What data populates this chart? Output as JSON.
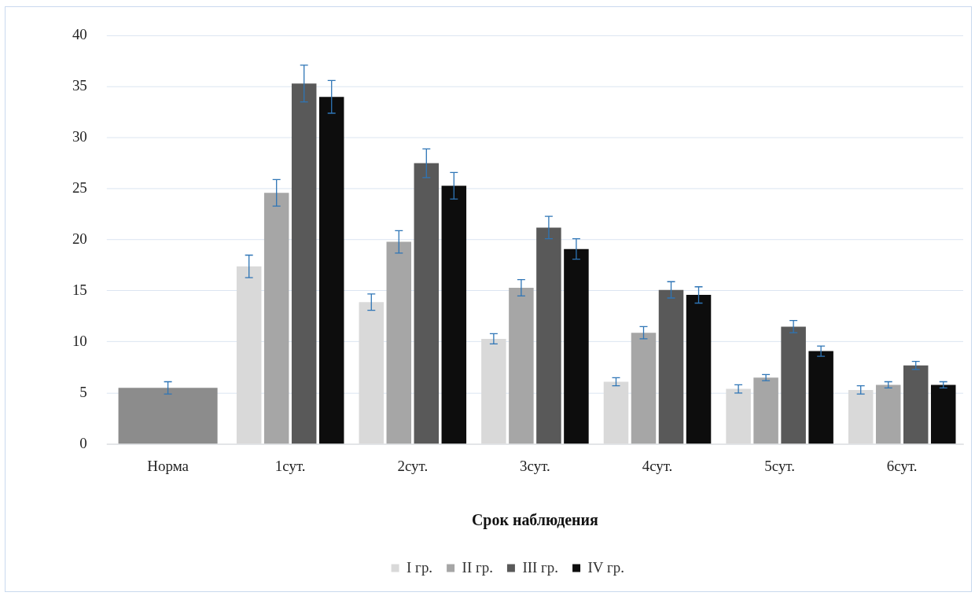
{
  "chart_data": {
    "type": "bar",
    "xlabel": "Срок наблюдения",
    "categories": [
      "Норма",
      "1сут.",
      "2сут.",
      "3сут.",
      "4сут.",
      "5сут.",
      "6сут."
    ],
    "series": [
      {
        "color": "#8c8c8c",
        "values": [
          5.5,
          null,
          null,
          null,
          null,
          null,
          null
        ],
        "errors": [
          0.6,
          null,
          null,
          null,
          null,
          null,
          null
        ]
      },
      {
        "name": "I гр.",
        "color": "#d9d9d9",
        "values": [
          null,
          17.4,
          13.9,
          10.3,
          6.1,
          5.4,
          5.3
        ],
        "errors": [
          null,
          1.1,
          0.8,
          0.5,
          0.4,
          0.4,
          0.4
        ]
      },
      {
        "name": "II гр.",
        "color": "#a6a6a6",
        "values": [
          null,
          24.6,
          19.8,
          15.3,
          10.9,
          6.5,
          5.8
        ],
        "errors": [
          null,
          1.3,
          1.1,
          0.8,
          0.6,
          0.3,
          0.3
        ]
      },
      {
        "name": "III гр.",
        "color": "#595959",
        "values": [
          null,
          35.3,
          27.5,
          21.2,
          15.1,
          11.5,
          7.7
        ],
        "errors": [
          null,
          1.8,
          1.4,
          1.1,
          0.8,
          0.6,
          0.4
        ]
      },
      {
        "name": "IV гр.",
        "color": "#0d0d0d",
        "values": [
          null,
          34.0,
          25.3,
          19.1,
          14.6,
          9.1,
          5.8
        ],
        "errors": [
          null,
          1.6,
          1.3,
          1.0,
          0.8,
          0.5,
          0.3
        ]
      }
    ],
    "ylim": [
      0,
      40
    ],
    "yticks": [
      0,
      5,
      10,
      15,
      20,
      25,
      30,
      35,
      40
    ],
    "grid": "y",
    "legend": "bottom"
  }
}
